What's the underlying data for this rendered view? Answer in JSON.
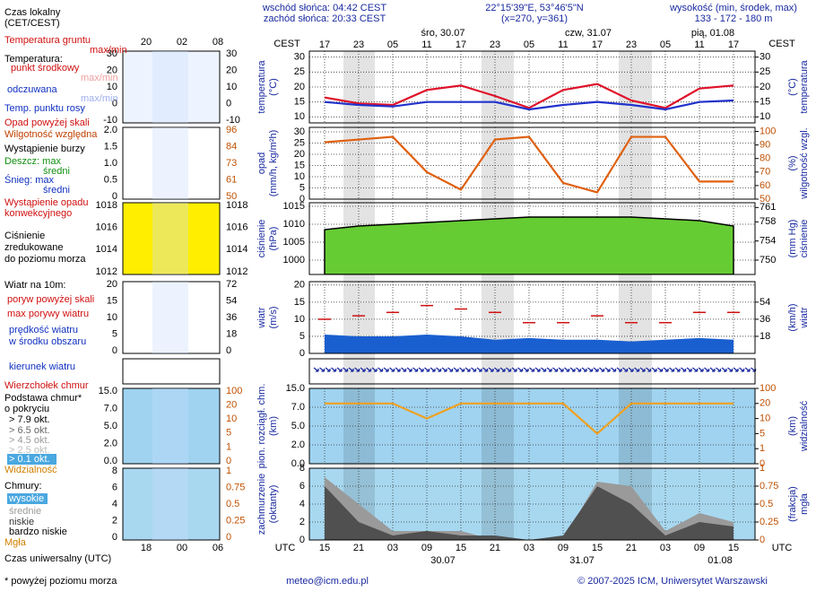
{
  "header": {
    "sunrise": "wschód słońca: 04:42 CEST",
    "sunset": "zachód słońca: 20:33 CEST",
    "coords": "22°15'39\"E, 53°46'5\"N",
    "grid": "(x=270, y=361)",
    "elevation_label": "wysokość (min, środek, max)",
    "elevation": "133 - 172 - 180 m"
  },
  "days": [
    "śro, 30.07",
    "czw, 31.07",
    "pią, 01.08"
  ],
  "dates": [
    "30.07",
    "31.07",
    "01.08"
  ],
  "zone_top": "CEST",
  "zone_bottom": "UTC",
  "local_hours": [
    "20",
    "02",
    "08"
  ],
  "utc_hours": [
    "18",
    "00",
    "06"
  ],
  "mini_panels": [
    {
      "left": [
        "30",
        "20",
        "10",
        "0",
        "-10"
      ],
      "right": [
        "30",
        "20",
        "10",
        "0",
        "-10"
      ]
    },
    {
      "left": [
        "2.0",
        "1.5",
        "1.0",
        "0.5",
        "0"
      ],
      "right": [
        "96",
        "84",
        "73",
        "61",
        "50"
      ]
    },
    {
      "left": [
        "1018",
        "1016",
        "1014",
        "1012"
      ],
      "right": [
        "1018",
        "1016",
        "1014",
        "1012"
      ]
    },
    {
      "left": [
        "20",
        "15",
        "10",
        "5",
        "0"
      ],
      "right": [
        "72",
        "54",
        "36",
        "18",
        "0"
      ]
    },
    {
      "left": [
        "15.0",
        "7.0",
        "5.0",
        "2.0",
        "0.0"
      ],
      "right": [
        "100",
        "20",
        "10",
        "5",
        "1",
        "0"
      ]
    },
    {
      "left": [
        "8",
        "6",
        "4",
        "2",
        "0"
      ],
      "right": [
        "1",
        "0.75",
        "0.5",
        "0.25",
        "0"
      ]
    }
  ],
  "legend": {
    "local_time": [
      "Czas lokalny",
      "(CET/CEST)"
    ],
    "ground_temp": "Temperatura gruntu",
    "max_min": "max/min",
    "temperature": "Temperatura:",
    "feels": "odczuwana",
    "precip_over": "Opad powyżej skali",
    "storm": "Wystąpienie burzy",
    "rain_max": "Deszcz: max",
    "mean": "średni",
    "snow_max": "Śnieg: max",
    "convective": [
      "Wystąpienie opadu",
      "konwekcyjnego"
    ],
    "pressure": [
      "Ciśnienie",
      "zredukowane",
      "do poziomu morza"
    ],
    "wind10": "Wiatr na 10m:",
    "gust_over": "poryw powyżej skali",
    "wind_mean": [
      "prędkość wiatru",
      "w środku obszaru"
    ],
    "wind_dir": "kierunek wiatru",
    "cloud_top": "Wierzchołek chmur",
    "cloud_base": [
      "Podstawa chmur*",
      "o pokryciu"
    ],
    "octas": [
      "> 7.9 okt.",
      "> 6.5 okt.",
      "> 4.5 okt.",
      "> 2.5 okt.",
      "> 0.1 okt."
    ],
    "clouds": "Chmury:",
    "high": "wysokie",
    "very_low": "bardzo niskie",
    "fog": "Mgła",
    "utc": "Czas uniwersalny (UTC)"
  },
  "footer": {
    "note": "* powyżej poziomu morza",
    "email": "meteo@icm.edu.pl",
    "copyright": "© 2007-2025 ICM, Uniwersytet Warszawski"
  },
  "chart_data": [
    {
      "type": "line",
      "categories": [
        "15",
        "21",
        "03",
        "09",
        "15",
        "21",
        "03",
        "09",
        "15",
        "21",
        "03",
        "09",
        "15"
      ],
      "x2_categories": [
        "17",
        "23",
        "05",
        "11",
        "17",
        "23",
        "05",
        "11",
        "17",
        "23",
        "05",
        "11",
        "17"
      ],
      "ylabel": [
        "temperatura",
        "(°C)"
      ],
      "y2label": [
        "(°C)",
        "temperatura"
      ],
      "ylim": [
        8,
        32
      ],
      "yticks": [
        10,
        15,
        20,
        25,
        30
      ],
      "y2lim": [
        8,
        32
      ],
      "y2ticks": [
        10,
        15,
        20,
        25,
        30
      ],
      "grid": true,
      "series": [
        {
          "name": "punkt środkowy",
          "color": "#e0102a",
          "style": "line",
          "values": [
            16.5,
            14.5,
            14,
            19,
            20.5,
            17,
            13,
            19,
            21,
            15.5,
            13,
            19.5,
            20.5
          ]
        },
        {
          "name": "Temp. punktu rosy",
          "color": "#2233cc",
          "style": "line",
          "values": [
            15,
            14,
            13.5,
            15,
            15,
            15,
            12.5,
            14,
            15,
            14,
            12.5,
            15,
            15.5
          ]
        }
      ]
    },
    {
      "type": "line",
      "ylabel": [
        "opad",
        "(mm/h, kg/m²h)"
      ],
      "y2label": [
        "(%)",
        "wilgotność wzgl."
      ],
      "ylim": [
        0,
        32
      ],
      "yticks": [
        0,
        5,
        10,
        15,
        20,
        25,
        30
      ],
      "y2lim": [
        50,
        103
      ],
      "y2ticks": [
        50,
        60,
        70,
        80,
        90,
        100
      ],
      "grid": true,
      "series": [
        {
          "name": "Wilgotność względna",
          "color": "#e06010",
          "style": "line",
          "axis": "y2",
          "values": [
            92,
            94,
            96,
            70,
            57,
            94,
            96,
            62,
            55,
            96,
            96,
            63,
            63
          ]
        }
      ]
    },
    {
      "type": "line",
      "ylabel": [
        "ciśnienie",
        "(hPa)"
      ],
      "y2label": [
        "(mm Hg)",
        "ciśnienie"
      ],
      "ylim": [
        996,
        1016
      ],
      "yticks": [
        1000,
        1005,
        1010,
        1015
      ],
      "y2lim": [
        747,
        762
      ],
      "y2ticks": [
        750,
        754,
        758,
        761
      ],
      "grid": true,
      "series": [
        {
          "color": "#66cc33",
          "style": "area",
          "values": [
            1008.5,
            1009.5,
            1010,
            1010.5,
            1011,
            1011.5,
            1012,
            1012,
            1012,
            1012,
            1011.5,
            1011,
            1009.5
          ]
        }
      ]
    },
    {
      "type": "line",
      "ylabel": [
        "wiatr",
        "(m/s)"
      ],
      "y2label": [
        "(km/h)",
        "wiatr"
      ],
      "ylim": [
        0,
        21
      ],
      "yticks": [
        0,
        5,
        10,
        15,
        20
      ],
      "y2lim": [
        0,
        75.6
      ],
      "y2ticks": [
        18,
        36,
        54
      ],
      "grid": true,
      "series": [
        {
          "name": "max porywy wiatru",
          "color": "#d01010",
          "style": "dash",
          "values": [
            10,
            11,
            12,
            14,
            13,
            12,
            9,
            9,
            11,
            9,
            9,
            12,
            12
          ]
        },
        {
          "color": "#1a5fd0",
          "style": "area",
          "values": [
            5.5,
            5,
            5,
            5.5,
            5,
            4,
            4.5,
            4,
            4,
            3.5,
            4,
            4.5,
            4
          ]
        }
      ]
    },
    {
      "type": "line",
      "ylabel": [
        "pion. rozciągł. chm.",
        "(km)"
      ],
      "y2label": [
        "(km)",
        "widzialność"
      ],
      "ylim": [
        0,
        15
      ],
      "yscale": "ticks",
      "yticks": [
        {
          "value": 0,
          "label": "0.0"
        },
        {
          "value": 2,
          "label": "2.0"
        },
        {
          "value": 5,
          "label": "5.0"
        },
        {
          "value": 7,
          "label": "7.0"
        },
        {
          "value": 15,
          "label": "15.0"
        }
      ],
      "y2lim": [
        0,
        100
      ],
      "y2scale": "ticks",
      "y2ticks": [
        0,
        1,
        5,
        10,
        20,
        100
      ],
      "grid": true,
      "series": [
        {
          "name": "Widzialność",
          "color": "#f0a020",
          "style": "line",
          "axis": "y2",
          "values": [
            20,
            20,
            20,
            10,
            20,
            20,
            20,
            20,
            5,
            20,
            20,
            20,
            20
          ]
        }
      ]
    },
    {
      "type": "line",
      "ylabel": [
        "zachmurzenie",
        "(oktanty)"
      ],
      "y2label": [
        "(frakcja)",
        "mgła"
      ],
      "ylim": [
        0,
        8
      ],
      "yticks": [
        0,
        2,
        4,
        6,
        8
      ],
      "y2lim": [
        0,
        1
      ],
      "y2ticks": [
        0,
        0.25,
        0.5,
        0.75,
        1
      ],
      "grid": true,
      "series": [
        {
          "name": "średnie",
          "color": "#9a9a9a",
          "style": "area",
          "values": [
            7,
            4,
            1,
            1,
            1,
            0,
            0,
            0,
            6.5,
            6,
            1,
            3,
            2
          ]
        },
        {
          "name": "niskie",
          "color": "#505050",
          "style": "area",
          "values": [
            6,
            2,
            0.5,
            1,
            0.5,
            0.5,
            0,
            0.5,
            6,
            4,
            0.5,
            2,
            1.5
          ]
        }
      ]
    }
  ]
}
